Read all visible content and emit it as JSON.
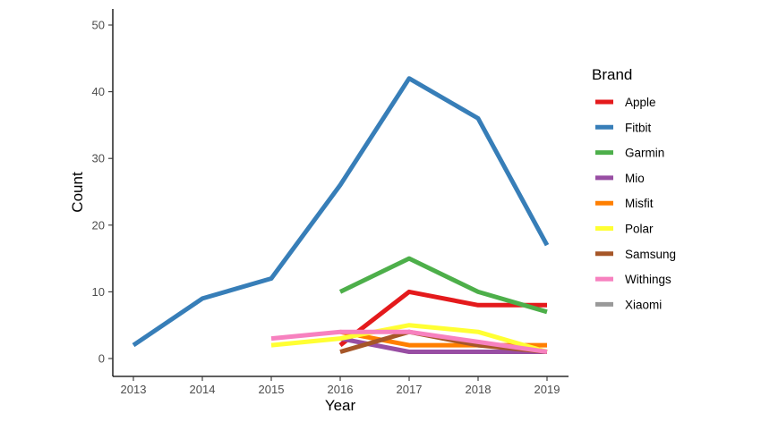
{
  "chart_data": {
    "type": "line",
    "title": "",
    "xlabel": "Year",
    "ylabel": "Count",
    "xlim": [
      2013,
      2019
    ],
    "ylim": [
      0,
      50
    ],
    "xticks": [
      "2013",
      "2014",
      "2015",
      "2016",
      "2017",
      "2018",
      "2019"
    ],
    "yticks": [
      "0",
      "10",
      "20",
      "30",
      "40",
      "50"
    ],
    "grid": false,
    "legend": {
      "title": "Brand",
      "position": "right"
    },
    "series": [
      {
        "name": "Apple",
        "color": "#e41a1c",
        "x": [
          2016,
          2017,
          2018,
          2019
        ],
        "y": [
          2,
          10,
          8,
          8
        ]
      },
      {
        "name": "Fitbit",
        "color": "#377eb8",
        "x": [
          2013,
          2014,
          2015,
          2016,
          2017,
          2018,
          2019
        ],
        "y": [
          2,
          9,
          12,
          26,
          42,
          36,
          17
        ]
      },
      {
        "name": "Garmin",
        "color": "#4daf4a",
        "x": [
          2016,
          2017,
          2018,
          2019
        ],
        "y": [
          10,
          15,
          10,
          7
        ]
      },
      {
        "name": "Mio",
        "color": "#984ea3",
        "x": [
          2016,
          2017,
          2018,
          2019
        ],
        "y": [
          3,
          1,
          1,
          1
        ]
      },
      {
        "name": "Misfit",
        "color": "#ff7f00",
        "x": [
          2016,
          2017,
          2018,
          2019
        ],
        "y": [
          4,
          2,
          2,
          2
        ]
      },
      {
        "name": "Polar",
        "color": "#ffff33",
        "x": [
          2015,
          2016,
          2017,
          2018,
          2019
        ],
        "y": [
          2,
          3,
          5,
          4,
          1
        ]
      },
      {
        "name": "Samsung",
        "color": "#a65628",
        "x": [
          2016,
          2017,
          2018,
          2019
        ],
        "y": [
          1,
          4,
          2,
          1
        ]
      },
      {
        "name": "Withings",
        "color": "#f781bf",
        "x": [
          2015,
          2016,
          2017,
          2018,
          2019
        ],
        "y": [
          3,
          4,
          4,
          2.5,
          1
        ]
      },
      {
        "name": "Xiaomi",
        "color": "#999999",
        "x": [],
        "y": []
      }
    ]
  }
}
